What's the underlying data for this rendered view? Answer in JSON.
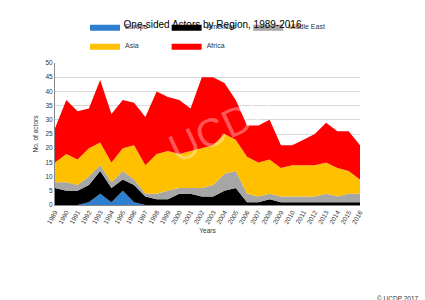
{
  "chart_data": {
    "type": "area",
    "title": "One-sided Actors by Region, 1989-2016",
    "x_label": "Years",
    "y_label": "No. of actors",
    "watermark": "UCDP",
    "source": "© UCDP 2017",
    "stacked": true,
    "grid": true,
    "legend": "top",
    "x": [
      1989,
      1990,
      1991,
      1992,
      1993,
      1994,
      1995,
      1996,
      1997,
      1998,
      1999,
      2000,
      2001,
      2002,
      2003,
      2004,
      2005,
      2006,
      2007,
      2008,
      2009,
      2010,
      2011,
      2012,
      2013,
      2014,
      2015,
      2016
    ],
    "xlim": [
      1989,
      2016
    ],
    "xticks": [
      1989,
      1990,
      1991,
      1992,
      1993,
      1994,
      1995,
      1996,
      1997,
      1998,
      1999,
      2000,
      2001,
      2002,
      2003,
      2004,
      2005,
      2006,
      2007,
      2008,
      2009,
      2010,
      2011,
      2012,
      2013,
      2014,
      2015,
      2016
    ],
    "ylim": [
      0,
      50
    ],
    "yticks": [
      0,
      5,
      10,
      15,
      20,
      25,
      30,
      35,
      40,
      45,
      50
    ],
    "series": [
      {
        "name": "Europe",
        "color": "#2e7fd0",
        "values": [
          0,
          0,
          0,
          1,
          4,
          1,
          5,
          1,
          0,
          0,
          0,
          0,
          0,
          0,
          0,
          0,
          0,
          0,
          0,
          0,
          0,
          0,
          0,
          0,
          0,
          0,
          0,
          0
        ]
      },
      {
        "name": "Americas",
        "color": "#000000",
        "values": [
          6,
          5,
          5,
          6,
          8,
          5,
          4,
          6,
          3,
          2,
          2,
          4,
          4,
          3,
          3,
          5,
          6,
          1,
          1,
          2,
          1,
          1,
          1,
          1,
          1,
          1,
          1,
          1
        ]
      },
      {
        "name": "Middle East",
        "color": "#a6a6a6",
        "values": [
          2,
          3,
          2,
          3,
          2,
          2,
          3,
          2,
          1,
          2,
          3,
          2,
          2,
          3,
          4,
          6,
          6,
          3,
          2,
          2,
          2,
          2,
          2,
          2,
          3,
          2,
          3,
          3
        ]
      },
      {
        "name": "Asia",
        "color": "#ffc000",
        "values": [
          7,
          10,
          9,
          10,
          8,
          7,
          8,
          12,
          10,
          14,
          14,
          12,
          13,
          14,
          14,
          14,
          11,
          13,
          12,
          12,
          10,
          11,
          11,
          11,
          11,
          10,
          8,
          5
        ]
      },
      {
        "name": "Africa",
        "color": "#ff0000",
        "values": [
          12,
          19,
          17,
          14,
          22,
          17,
          17,
          15,
          17,
          22,
          19,
          19,
          15,
          25,
          24,
          18,
          14,
          11,
          13,
          14,
          8,
          7,
          9,
          11,
          14,
          13,
          14,
          12
        ]
      }
    ]
  }
}
